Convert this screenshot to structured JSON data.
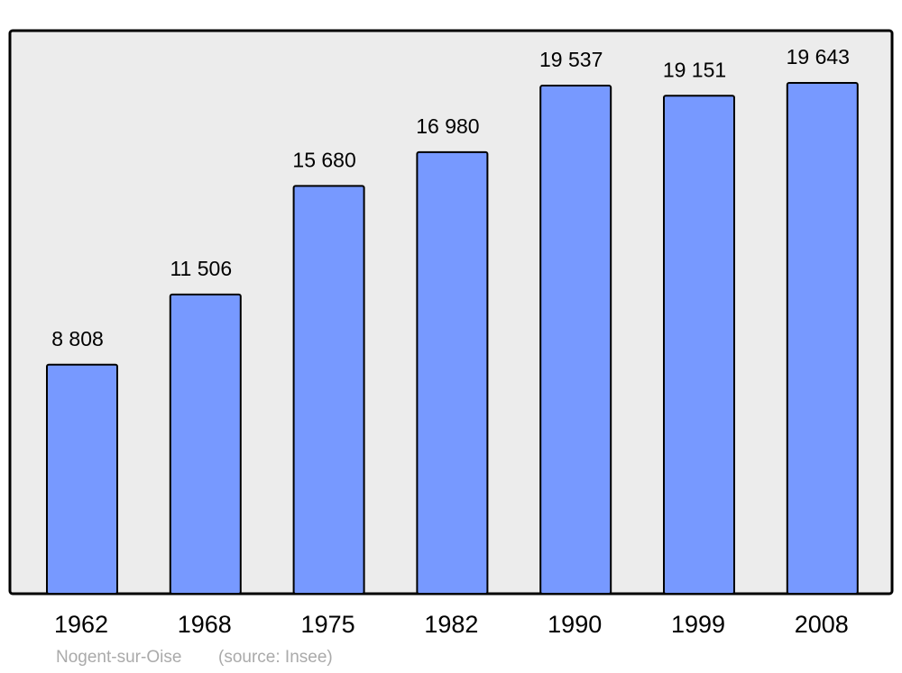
{
  "chart_data": {
    "type": "bar",
    "categories": [
      "1962",
      "1968",
      "1975",
      "1982",
      "1990",
      "1999",
      "2008"
    ],
    "values": [
      8808,
      11506,
      15680,
      16980,
      19537,
      19151,
      19643
    ],
    "value_labels": [
      "8 808",
      "11 506",
      "15 680",
      "16 980",
      "19 537",
      "19 151",
      "19 643"
    ],
    "color": "#7799ff",
    "footnote": "Nogent-sur-Oise",
    "source": "(source: Insee)"
  }
}
